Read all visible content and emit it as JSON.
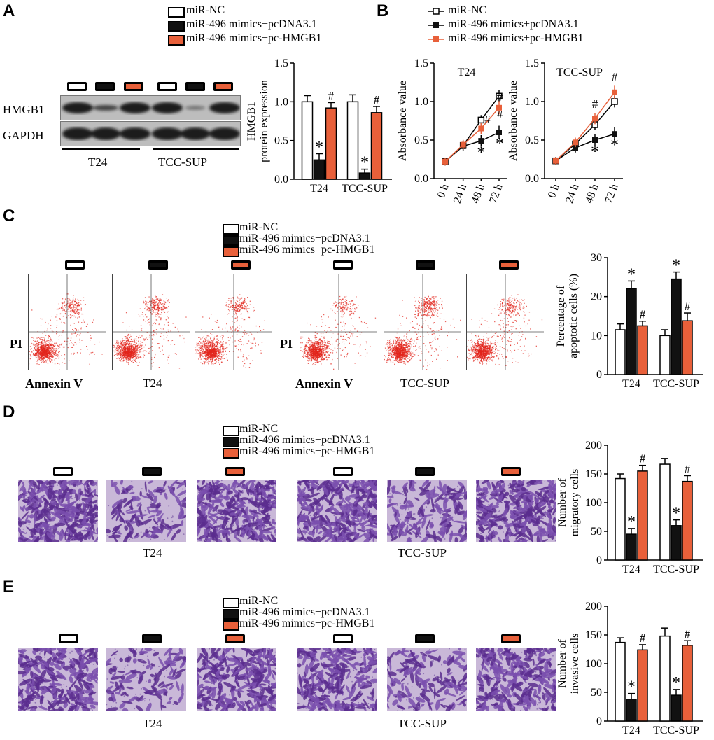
{
  "legend": {
    "miR_NC": "miR-NC",
    "mimics_pcDNA": "miR-496 mimics+pcDNA3.1",
    "mimics_pcHMGB1": "miR-496 mimics+pc-HMGB1"
  },
  "colors": {
    "nc": "#ffffff",
    "pcdna": "#111111",
    "hmgb1": "#e8603a"
  },
  "panels": {
    "A": {
      "letter": "A",
      "blot": {
        "band1": "HMGB1",
        "band2": "GAPDH",
        "group1": "T24",
        "group2": "TCC-SUP"
      },
      "chart_data": {
        "type": "bar",
        "ylabel": "HMGB1 protein expression",
        "ylim": [
          0,
          1.5
        ],
        "yticks": [
          "0.0",
          "0.5",
          "1.0",
          "1.5"
        ],
        "categories": [
          "T24",
          "TCC-SUP"
        ],
        "series": [
          {
            "name": "miR-NC",
            "values": [
              1.0,
              1.0
            ],
            "err": [
              0.08,
              0.09
            ]
          },
          {
            "name": "miR-496 mimics+pcDNA3.1",
            "values": [
              0.25,
              0.08
            ],
            "err": [
              0.08,
              0.05
            ]
          },
          {
            "name": "miR-496 mimics+pc-HMGB1",
            "values": [
              0.92,
              0.86
            ],
            "err": [
              0.07,
              0.08
            ]
          }
        ],
        "marks": [
          "*",
          "#"
        ]
      }
    },
    "B": {
      "letter": "B",
      "chart_data": [
        {
          "type": "line",
          "title": "T24",
          "ylabel": "Absorbance value",
          "ylim": [
            0,
            1.5
          ],
          "yticks": [
            "0.0",
            "0.5",
            "1.0",
            "1.5"
          ],
          "x": [
            "0 h",
            "24 h",
            "48 h",
            "72 h"
          ],
          "series": [
            {
              "name": "miR-NC",
              "values": [
                0.22,
                0.43,
                0.76,
                1.07
              ]
            },
            {
              "name": "miR-496 mimics+pcDNA3.1",
              "values": [
                0.22,
                0.42,
                0.49,
                0.6
              ]
            },
            {
              "name": "miR-496 mimics+pc-HMGB1",
              "values": [
                0.22,
                0.44,
                0.65,
                0.92
              ]
            }
          ]
        },
        {
          "type": "line",
          "title": "TCC-SUP",
          "ylabel": "Absorbance value",
          "ylim": [
            0,
            1.5
          ],
          "yticks": [
            "0.0",
            "0.5",
            "1.0",
            "1.5"
          ],
          "x": [
            "0 h",
            "24 h",
            "48 h",
            "72 h"
          ],
          "series": [
            {
              "name": "miR-NC",
              "values": [
                0.23,
                0.45,
                0.7,
                1.0
              ]
            },
            {
              "name": "miR-496 mimics+pcDNA3.1",
              "values": [
                0.23,
                0.4,
                0.5,
                0.58
              ]
            },
            {
              "name": "miR-496 mimics+pc-HMGB1",
              "values": [
                0.23,
                0.47,
                0.78,
                1.12
              ]
            }
          ]
        }
      ]
    },
    "C": {
      "letter": "C",
      "flow": {
        "ylabel": "PI",
        "xlabel": "Annexin V",
        "group1": "T24",
        "group2": "TCC-SUP"
      },
      "chart_data": {
        "type": "bar",
        "ylabel": "Percentage of apoptotic cells (%)",
        "ylim": [
          0,
          30
        ],
        "yticks": [
          "0",
          "10",
          "20",
          "30"
        ],
        "categories": [
          "T24",
          "TCC-SUP"
        ],
        "series": [
          {
            "name": "miR-NC",
            "values": [
              11.5,
              10.0
            ],
            "err": [
              1.5,
              1.5
            ]
          },
          {
            "name": "miR-496 mimics+pcDNA3.1",
            "values": [
              22.0,
              24.5
            ],
            "err": [
              2.0,
              1.8
            ]
          },
          {
            "name": "miR-496 mimics+pc-HMGB1",
            "values": [
              12.5,
              13.8
            ],
            "err": [
              1.2,
              2.0
            ]
          }
        ]
      }
    },
    "D": {
      "letter": "D",
      "group1": "T24",
      "group2": "TCC-SUP",
      "chart_data": {
        "type": "bar",
        "ylabel": "Number of migratory cells",
        "ylim": [
          0,
          200
        ],
        "yticks": [
          "0",
          "50",
          "100",
          "150",
          "200"
        ],
        "categories": [
          "T24",
          "TCC-SUP"
        ],
        "series": [
          {
            "name": "miR-NC",
            "values": [
              142,
              167
            ],
            "err": [
              8,
              10
            ]
          },
          {
            "name": "miR-496 mimics+pcDNA3.1",
            "values": [
              45,
              60
            ],
            "err": [
              10,
              10
            ]
          },
          {
            "name": "miR-496 mimics+pc-HMGB1",
            "values": [
              155,
              137
            ],
            "err": [
              10,
              10
            ]
          }
        ]
      }
    },
    "E": {
      "letter": "E",
      "group1": "T24",
      "group2": "TCC-SUP",
      "chart_data": {
        "type": "bar",
        "ylabel": "Number of invasive cells",
        "ylim": [
          0,
          200
        ],
        "yticks": [
          "0",
          "50",
          "100",
          "150",
          "200"
        ],
        "categories": [
          "T24",
          "TCC-SUP"
        ],
        "series": [
          {
            "name": "miR-NC",
            "values": [
              137,
              148
            ],
            "err": [
              8,
              14
            ]
          },
          {
            "name": "miR-496 mimics+pcDNA3.1",
            "values": [
              38,
              45
            ],
            "err": [
              10,
              10
            ]
          },
          {
            "name": "miR-496 mimics+pc-HMGB1",
            "values": [
              124,
              132
            ],
            "err": [
              9,
              8
            ]
          }
        ]
      }
    }
  }
}
